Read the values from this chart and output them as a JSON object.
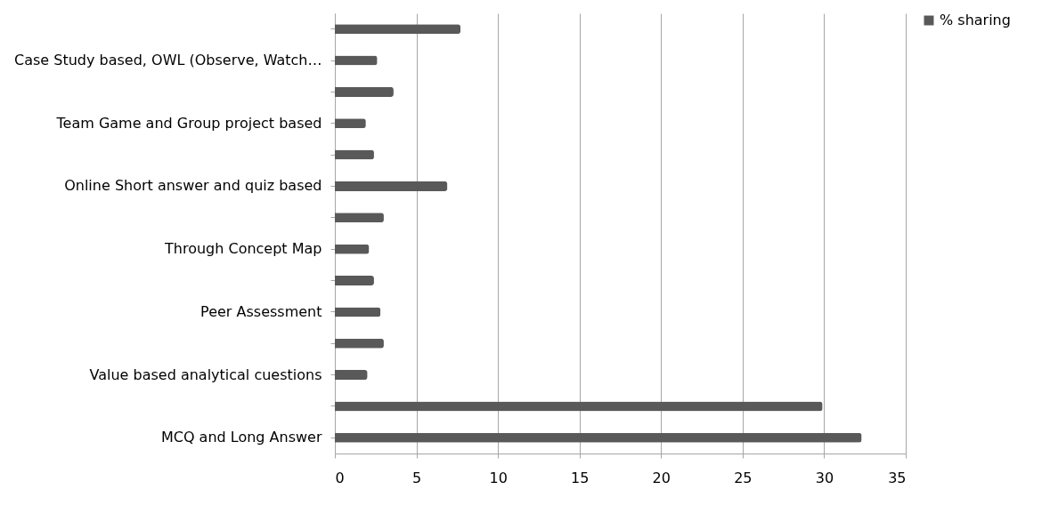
{
  "chart_data": {
    "type": "bar",
    "orientation": "horizontal",
    "categories": [
      null,
      "Case Study based, OWL (Observe, Watch…",
      null,
      "Team Game and Group project based",
      null,
      "Online Short answer and quiz based",
      null,
      "Through Concept Map",
      null,
      "Peer Assessment",
      null,
      "Value based analytical ϲuestions",
      null,
      "MCQ and Long Answer"
    ],
    "series": [
      {
        "name": "% sharing",
        "color": "#595959",
        "values": [
          7.7,
          2.6,
          3.6,
          1.9,
          2.4,
          6.9,
          3.0,
          2.1,
          2.4,
          2.8,
          3.0,
          2.0,
          29.9,
          32.3
        ]
      }
    ],
    "xlim": [
      0,
      35
    ],
    "xticks": [
      0,
      5,
      10,
      15,
      20,
      25,
      30,
      35
    ],
    "grid": "x",
    "legend": "right"
  }
}
